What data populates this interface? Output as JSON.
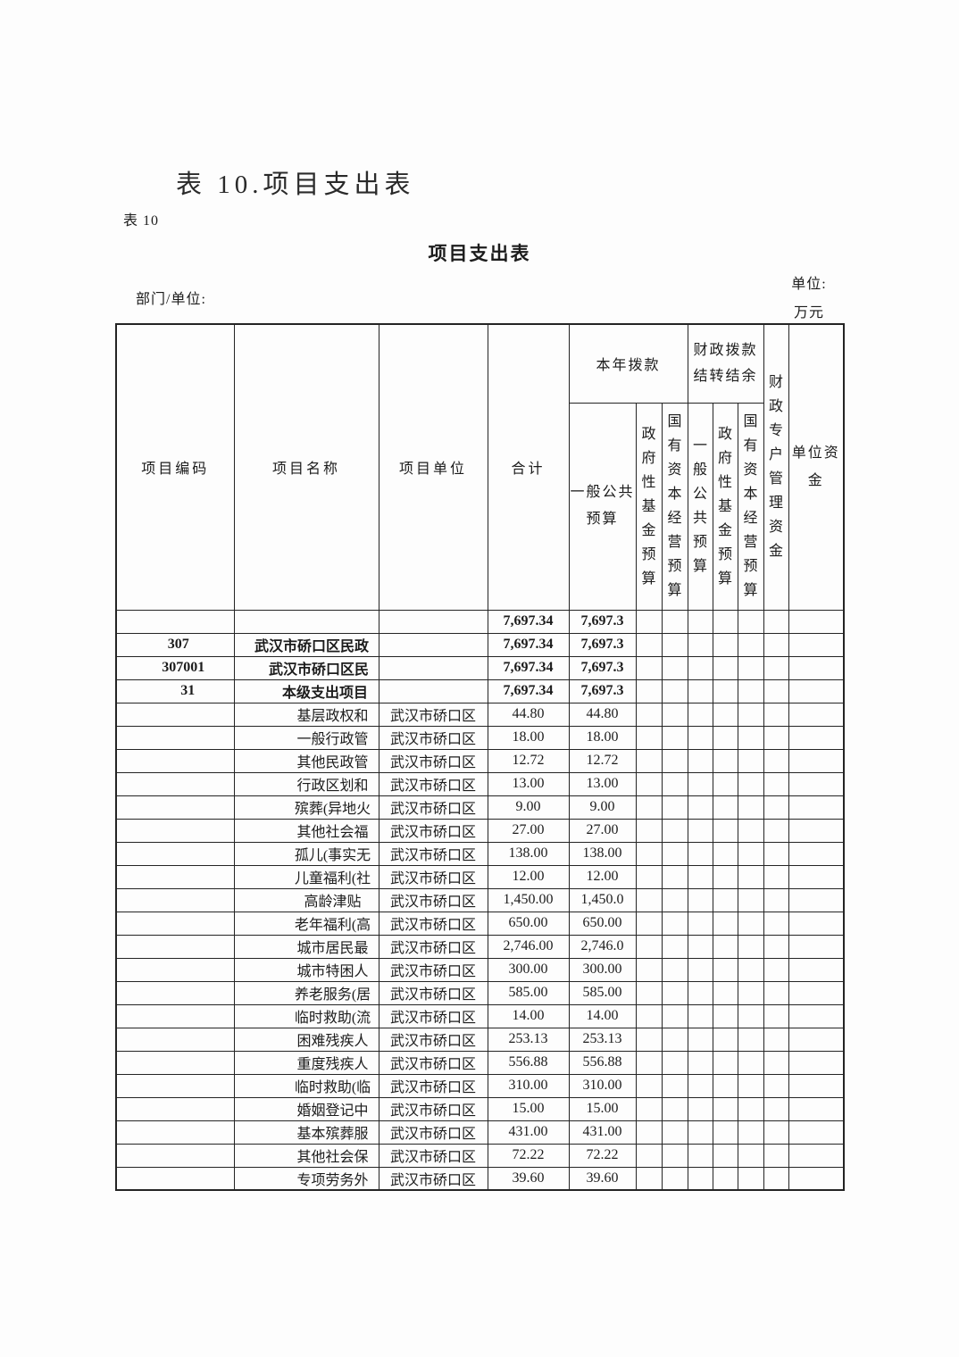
{
  "page": {
    "doc_title": "表 10.项目支出表",
    "sheet_tag": "表 10",
    "sheet_title": "项目支出表",
    "dept_label": "部门/单位:",
    "unit_label": "单位:",
    "unit_value": "万元"
  },
  "table": {
    "headers": {
      "code": "项目编码",
      "name": "项目名称",
      "unit": "项目单位",
      "total": "合计",
      "current_year_group": "本年拨款",
      "carryover_group": "财政拨款结转结余",
      "general_public_budget": "一般公共预算",
      "gov_fund_budget": "政府性基金预算",
      "state_capital_budget": "国有资本经营预算",
      "fiscal_special_account": "财政专户管理资金",
      "unit_funds": "单位资金"
    },
    "rows": [
      {
        "code": "",
        "indent": 0,
        "name": "",
        "unit": "",
        "total": "7,697.34",
        "general_public": "7,697.3",
        "bold": true
      },
      {
        "code": "307",
        "indent": 0,
        "name": "武汉市硚口区民政",
        "unit": "",
        "total": "7,697.34",
        "general_public": "7,697.3",
        "bold": true
      },
      {
        "code": "307001",
        "indent": 1,
        "name": "武汉市硚口区民",
        "unit": "",
        "total": "7,697.34",
        "general_public": "7,697.3",
        "bold": true
      },
      {
        "code": "31",
        "indent": 2,
        "name": "本级支出项目",
        "unit": "",
        "total": "7,697.34",
        "general_public": "7,697.3",
        "bold": true
      },
      {
        "code": "",
        "indent": 3,
        "name": "基层政权和",
        "unit": "武汉市硚口区",
        "total": "44.80",
        "general_public": "44.80",
        "bold": false
      },
      {
        "code": "",
        "indent": 3,
        "name": "一般行政管",
        "unit": "武汉市硚口区",
        "total": "18.00",
        "general_public": "18.00",
        "bold": false
      },
      {
        "code": "",
        "indent": 3,
        "name": "其他民政管",
        "unit": "武汉市硚口区",
        "total": "12.72",
        "general_public": "12.72",
        "bold": false
      },
      {
        "code": "",
        "indent": 3,
        "name": "行政区划和",
        "unit": "武汉市硚口区",
        "total": "13.00",
        "general_public": "13.00",
        "bold": false
      },
      {
        "code": "",
        "indent": 3,
        "name": "殡葬(异地火",
        "unit": "武汉市硚口区",
        "total": "9.00",
        "general_public": "9.00",
        "bold": false
      },
      {
        "code": "",
        "indent": 3,
        "name": "其他社会福",
        "unit": "武汉市硚口区",
        "total": "27.00",
        "general_public": "27.00",
        "bold": false
      },
      {
        "code": "",
        "indent": 3,
        "name": "孤儿(事实无",
        "unit": "武汉市硚口区",
        "total": "138.00",
        "general_public": "138.00",
        "bold": false
      },
      {
        "code": "",
        "indent": 3,
        "name": "儿童福利(社",
        "unit": "武汉市硚口区",
        "total": "12.00",
        "general_public": "12.00",
        "bold": false
      },
      {
        "code": "",
        "indent": 3,
        "name": "高龄津贴",
        "unit": "武汉市硚口区",
        "total": "1,450.00",
        "general_public": "1,450.0",
        "bold": false
      },
      {
        "code": "",
        "indent": 3,
        "name": "老年福利(高",
        "unit": "武汉市硚口区",
        "total": "650.00",
        "general_public": "650.00",
        "bold": false
      },
      {
        "code": "",
        "indent": 3,
        "name": "城市居民最",
        "unit": "武汉市硚口区",
        "total": "2,746.00",
        "general_public": "2,746.0",
        "bold": false
      },
      {
        "code": "",
        "indent": 3,
        "name": "城市特困人",
        "unit": "武汉市硚口区",
        "total": "300.00",
        "general_public": "300.00",
        "bold": false
      },
      {
        "code": "",
        "indent": 3,
        "name": "养老服务(居",
        "unit": "武汉市硚口区",
        "total": "585.00",
        "general_public": "585.00",
        "bold": false
      },
      {
        "code": "",
        "indent": 3,
        "name": "临时救助(流",
        "unit": "武汉市硚口区",
        "total": "14.00",
        "general_public": "14.00",
        "bold": false
      },
      {
        "code": "",
        "indent": 3,
        "name": "困难残疾人",
        "unit": "武汉市硚口区",
        "total": "253.13",
        "general_public": "253.13",
        "bold": false
      },
      {
        "code": "",
        "indent": 3,
        "name": "重度残疾人",
        "unit": "武汉市硚口区",
        "total": "556.88",
        "general_public": "556.88",
        "bold": false
      },
      {
        "code": "",
        "indent": 3,
        "name": "临时救助(临",
        "unit": "武汉市硚口区",
        "total": "310.00",
        "general_public": "310.00",
        "bold": false
      },
      {
        "code": "",
        "indent": 3,
        "name": "婚姻登记中",
        "unit": "武汉市硚口区",
        "total": "15.00",
        "general_public": "15.00",
        "bold": false
      },
      {
        "code": "",
        "indent": 3,
        "name": "基本殡葬服",
        "unit": "武汉市硚口区",
        "total": "431.00",
        "general_public": "431.00",
        "bold": false
      },
      {
        "code": "",
        "indent": 3,
        "name": "其他社会保",
        "unit": "武汉市硚口区",
        "total": "72.22",
        "general_public": "72.22",
        "bold": false
      },
      {
        "code": "",
        "indent": 3,
        "name": "专项劳务外",
        "unit": "武汉市硚口区",
        "total": "39.60",
        "general_public": "39.60",
        "bold": false
      }
    ]
  }
}
